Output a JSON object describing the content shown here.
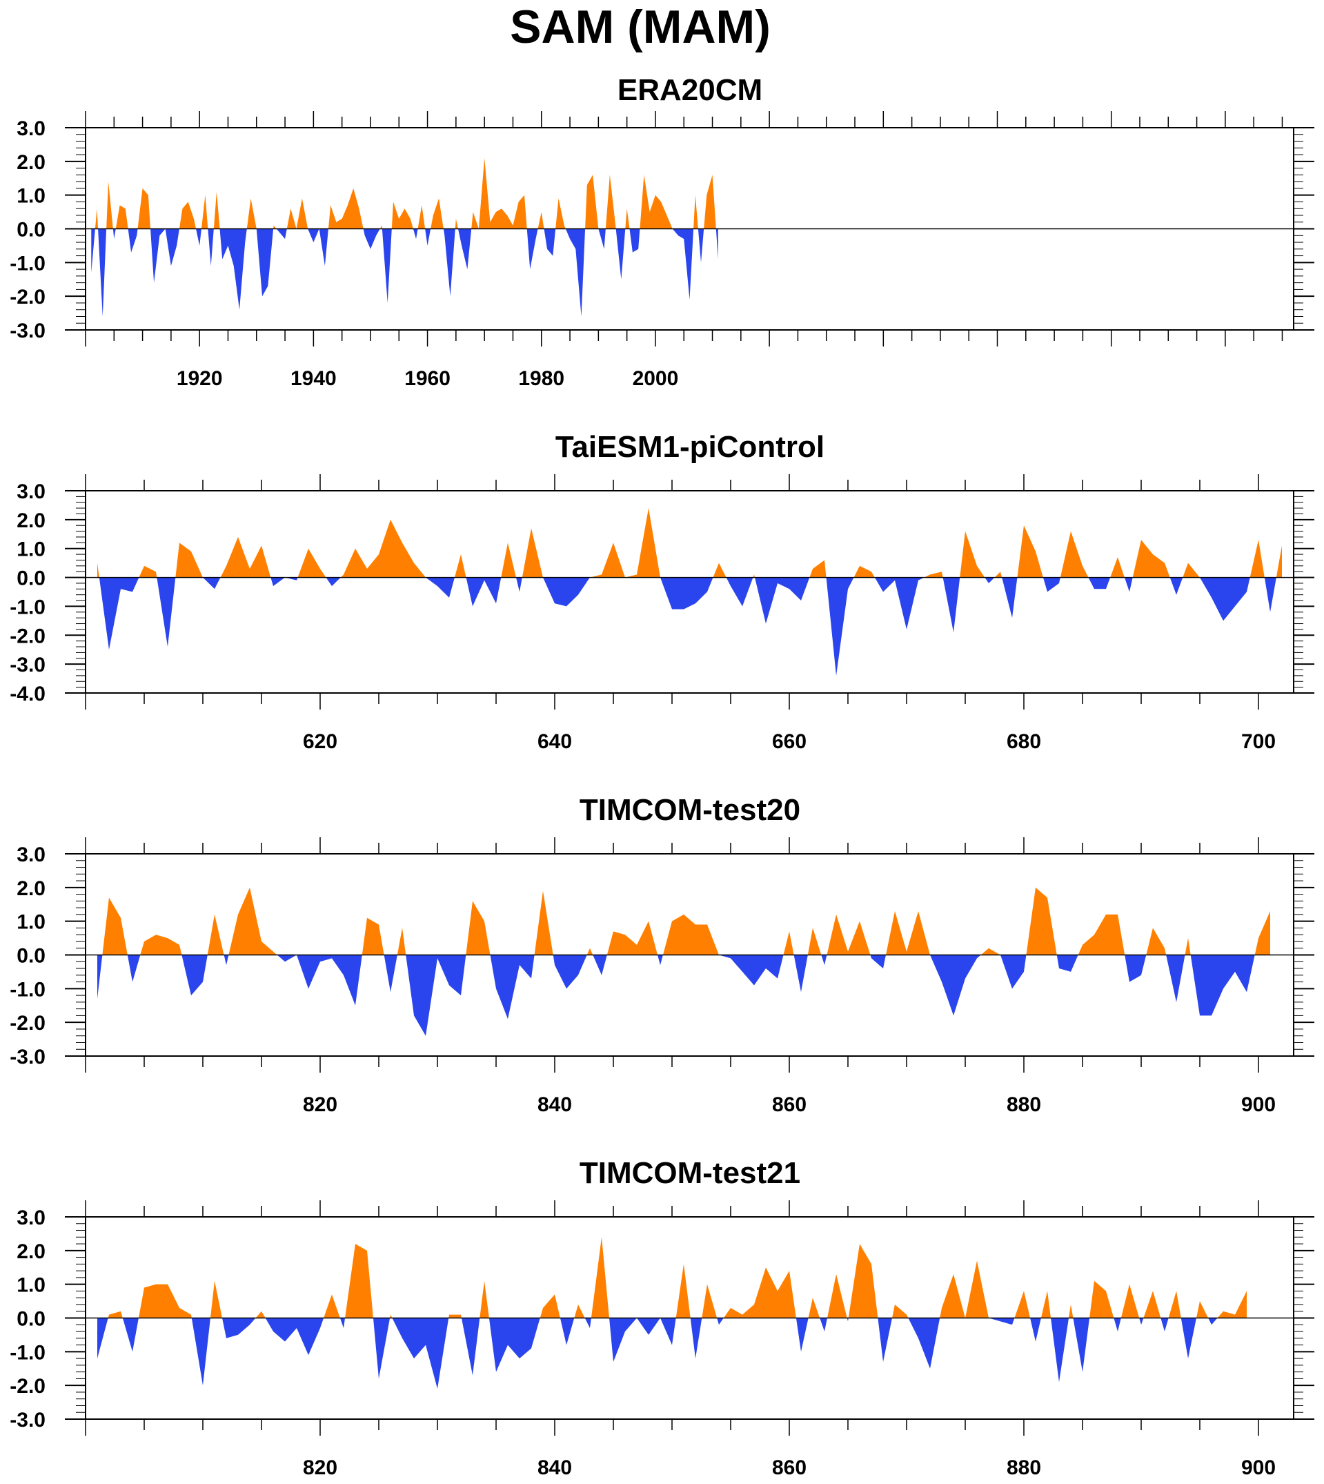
{
  "title": "SAM (MAM)",
  "colors": {
    "positive": "#ff8000",
    "negative": "#2b45ee",
    "axis": "#000000"
  },
  "chart_data": [
    {
      "type": "area",
      "title": "ERA20CM",
      "xlabel": "",
      "ylabel": "",
      "xlim": [
        1900,
        2112
      ],
      "ylim": [
        -3.0,
        3.0
      ],
      "yticks": [
        "3.0",
        "2.0",
        "1.0",
        "0.0",
        "-1.0",
        "-2.0",
        "-3.0"
      ],
      "xticks": [
        "1920",
        "1940",
        "1960",
        "1980",
        "2000"
      ],
      "grid": false,
      "x_start": 1901,
      "values": [
        -1.3,
        0.6,
        -2.6,
        1.4,
        -0.3,
        0.7,
        0.6,
        -0.7,
        -0.2,
        1.2,
        1.0,
        -1.6,
        -0.2,
        0.0,
        -1.1,
        -0.5,
        0.6,
        0.8,
        0.3,
        -0.5,
        1.0,
        -1.1,
        1.1,
        -0.9,
        -0.5,
        -1.1,
        -2.4,
        -0.4,
        0.9,
        0.0,
        -2.0,
        -1.7,
        0.1,
        -0.1,
        -0.3,
        0.6,
        0.0,
        0.9,
        0.0,
        -0.4,
        0.0,
        -1.1,
        0.7,
        0.2,
        0.3,
        0.7,
        1.2,
        0.6,
        -0.2,
        -0.6,
        -0.2,
        0.1,
        -2.2,
        0.8,
        0.3,
        0.6,
        0.3,
        -0.3,
        0.7,
        -0.5,
        0.4,
        0.9,
        -0.2,
        -2.0,
        0.3,
        -0.5,
        -1.2,
        0.5,
        0.0,
        2.1,
        0.2,
        0.5,
        0.6,
        0.4,
        0.1,
        0.8,
        1.0,
        -1.2,
        -0.3,
        0.5,
        -0.6,
        -0.8,
        0.9,
        0.1,
        -0.3,
        -0.6,
        -2.6,
        1.3,
        1.6,
        0.0,
        -0.6,
        1.6,
        0.1,
        -1.5,
        0.6,
        -0.7,
        -0.6,
        1.6,
        0.5,
        1.0,
        0.8,
        0.4,
        0.0,
        -0.2,
        -0.3,
        -2.1,
        1.0,
        -1.0,
        1.0,
        1.6,
        -0.9
      ]
    },
    {
      "type": "area",
      "title": "TaiESM1-piControl",
      "xlabel": "",
      "ylabel": "",
      "xlim": [
        600,
        703
      ],
      "ylim": [
        -4.0,
        3.0
      ],
      "yticks": [
        "3.0",
        "2.0",
        "1.0",
        "0.0",
        "-1.0",
        "-2.0",
        "-3.0",
        "-4.0"
      ],
      "xticks": [
        "620",
        "640",
        "660",
        "680",
        "700"
      ],
      "grid": false,
      "x_start": 601,
      "values": [
        0.5,
        -2.5,
        -0.4,
        -0.5,
        0.4,
        0.2,
        -2.4,
        1.2,
        0.9,
        0.0,
        -0.4,
        0.4,
        1.4,
        0.3,
        1.1,
        -0.3,
        0.0,
        -0.1,
        1.0,
        0.3,
        -0.3,
        0.1,
        1.0,
        0.3,
        0.8,
        2.0,
        1.2,
        0.5,
        0.0,
        -0.3,
        -0.7,
        0.8,
        -1.0,
        -0.1,
        -0.9,
        1.2,
        -0.5,
        1.7,
        0.0,
        -0.9,
        -1.0,
        -0.6,
        0.0,
        0.1,
        1.2,
        0.0,
        0.1,
        2.4,
        0.0,
        -1.1,
        -1.1,
        -0.9,
        -0.5,
        0.5,
        -0.3,
        -1.0,
        0.1,
        -1.6,
        -0.2,
        -0.4,
        -0.8,
        0.3,
        0.6,
        -3.4,
        -0.4,
        0.4,
        0.2,
        -0.5,
        -0.1,
        -1.8,
        -0.1,
        0.1,
        0.2,
        -1.9,
        1.6,
        0.4,
        -0.2,
        0.2,
        -1.4,
        1.8,
        0.9,
        -0.5,
        -0.2,
        1.6,
        0.4,
        -0.4,
        -0.4,
        0.7,
        -0.5,
        1.3,
        0.8,
        0.5,
        -0.6,
        0.5,
        0.0,
        -0.7,
        -1.5,
        -1.0,
        -0.5,
        1.3,
        -1.2,
        1.1
      ]
    },
    {
      "type": "area",
      "title": "TIMCOM-test20",
      "xlabel": "",
      "ylabel": "",
      "xlim": [
        800,
        903
      ],
      "ylim": [
        -3.0,
        3.0
      ],
      "yticks": [
        "3.0",
        "2.0",
        "1.0",
        "0.0",
        "-1.0",
        "-2.0",
        "-3.0"
      ],
      "xticks": [
        "820",
        "840",
        "860",
        "880",
        "900"
      ],
      "grid": false,
      "x_start": 801,
      "values": [
        -1.3,
        1.7,
        1.1,
        -0.8,
        0.4,
        0.6,
        0.5,
        0.3,
        -1.2,
        -0.8,
        1.2,
        -0.3,
        1.2,
        2.0,
        0.4,
        0.1,
        -0.2,
        0.0,
        -1.0,
        -0.2,
        -0.1,
        -0.6,
        -1.5,
        1.1,
        0.9,
        -1.1,
        0.8,
        -1.8,
        -2.4,
        -0.1,
        -0.9,
        -1.2,
        1.6,
        1.0,
        -1.0,
        -1.9,
        -0.3,
        -0.7,
        1.9,
        -0.3,
        -1.0,
        -0.6,
        0.2,
        -0.6,
        0.7,
        0.6,
        0.3,
        1.0,
        -0.3,
        1.0,
        1.2,
        0.9,
        0.9,
        0.0,
        -0.1,
        -0.5,
        -0.9,
        -0.4,
        -0.7,
        0.7,
        -1.1,
        0.8,
        -0.3,
        1.2,
        0.1,
        1.0,
        -0.1,
        -0.4,
        1.3,
        0.1,
        1.3,
        0.0,
        -0.8,
        -1.8,
        -0.7,
        -0.1,
        0.2,
        0.0,
        -1.0,
        -0.5,
        2.0,
        1.7,
        -0.4,
        -0.5,
        0.3,
        0.6,
        1.2,
        1.2,
        -0.8,
        -0.6,
        0.8,
        0.2,
        -1.4,
        0.5,
        -1.8,
        -1.8,
        -1.0,
        -0.5,
        -1.1,
        0.5,
        1.3
      ]
    },
    {
      "type": "area",
      "title": "TIMCOM-test21",
      "xlabel": "",
      "ylabel": "",
      "xlim": [
        800,
        903
      ],
      "ylim": [
        -3.0,
        3.0
      ],
      "yticks": [
        "3.0",
        "2.0",
        "1.0",
        "0.0",
        "-1.0",
        "-2.0",
        "-3.0"
      ],
      "xticks": [
        "820",
        "840",
        "860",
        "880",
        "900"
      ],
      "grid": false,
      "x_start": 801,
      "values": [
        -1.2,
        0.1,
        0.2,
        -1.0,
        0.9,
        1.0,
        1.0,
        0.3,
        0.1,
        -2.0,
        1.1,
        -0.6,
        -0.5,
        -0.2,
        0.2,
        -0.4,
        -0.7,
        -0.3,
        -1.1,
        -0.3,
        0.7,
        -0.3,
        2.2,
        2.0,
        -1.8,
        0.1,
        -0.6,
        -1.2,
        -0.8,
        -2.1,
        0.1,
        0.1,
        -1.7,
        1.1,
        -1.6,
        -0.8,
        -1.2,
        -0.9,
        0.3,
        0.7,
        -0.8,
        0.4,
        -0.3,
        2.4,
        -1.3,
        -0.4,
        0.0,
        -0.5,
        0.0,
        -0.8,
        1.6,
        -1.2,
        1.0,
        -0.2,
        0.3,
        0.1,
        0.4,
        1.5,
        0.8,
        1.4,
        -1.0,
        0.6,
        -0.4,
        1.3,
        -0.1,
        2.2,
        1.6,
        -1.3,
        0.4,
        0.1,
        -0.6,
        -1.5,
        0.3,
        1.3,
        0.0,
        1.7,
        0.0,
        -0.1,
        -0.2,
        0.8,
        -0.7,
        0.8,
        -1.9,
        0.4,
        -1.6,
        1.1,
        0.8,
        -0.4,
        1.0,
        -0.2,
        0.8,
        -0.4,
        0.8,
        -1.2,
        0.5,
        -0.2,
        0.2,
        0.1,
        0.8
      ]
    }
  ]
}
